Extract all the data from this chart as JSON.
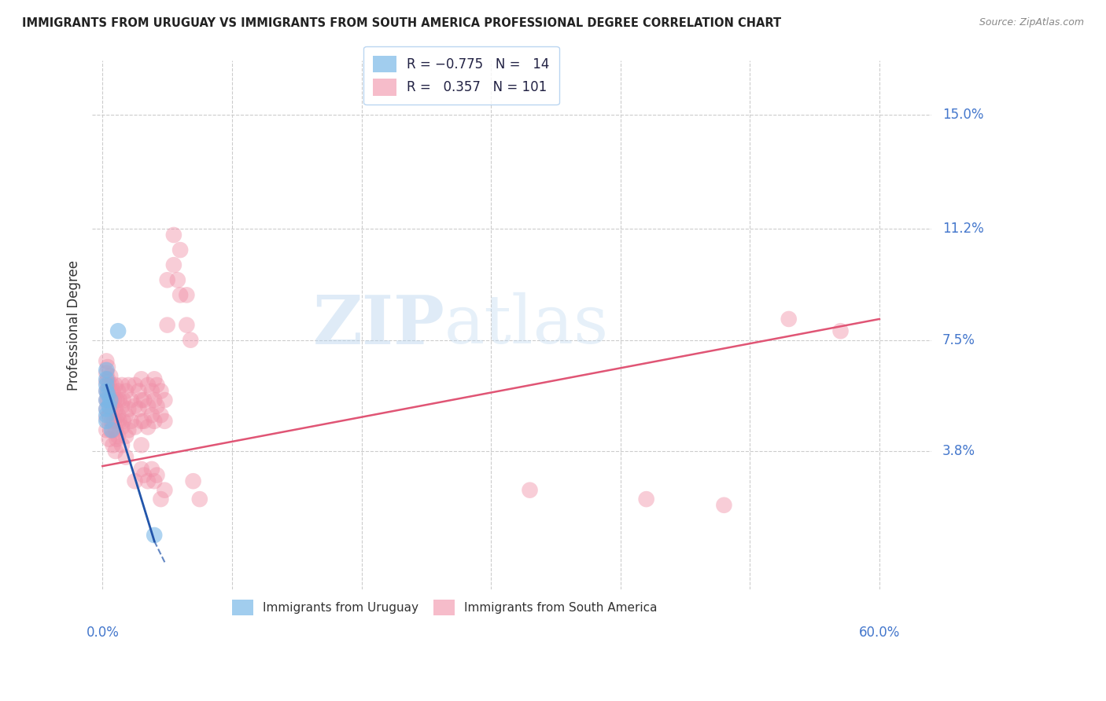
{
  "title": "IMMIGRANTS FROM URUGUAY VS IMMIGRANTS FROM SOUTH AMERICA PROFESSIONAL DEGREE CORRELATION CHART",
  "source": "Source: ZipAtlas.com",
  "ylabel": "Professional Degree",
  "y_ticks": [
    0.038,
    0.075,
    0.112,
    0.15
  ],
  "y_tick_labels": [
    "3.8%",
    "7.5%",
    "11.2%",
    "15.0%"
  ],
  "x_gridlines": [
    0.0,
    0.1,
    0.2,
    0.3,
    0.4,
    0.5,
    0.6
  ],
  "xlim": [
    -0.008,
    0.64
  ],
  "ylim": [
    -0.008,
    0.168
  ],
  "bg_color": "#ffffff",
  "grid_color": "#cccccc",
  "blue_color": "#7ab8e8",
  "pink_color": "#f090a8",
  "blue_line_color": "#2255aa",
  "pink_line_color": "#e05575",
  "blue_scatter": [
    [
      0.003,
      0.062
    ],
    [
      0.003,
      0.058
    ],
    [
      0.003,
      0.055
    ],
    [
      0.003,
      0.052
    ],
    [
      0.003,
      0.05
    ],
    [
      0.003,
      0.048
    ],
    [
      0.003,
      0.06
    ],
    [
      0.003,
      0.065
    ],
    [
      0.004,
      0.057
    ],
    [
      0.005,
      0.053
    ],
    [
      0.006,
      0.055
    ],
    [
      0.007,
      0.045
    ],
    [
      0.012,
      0.078
    ],
    [
      0.04,
      0.01
    ]
  ],
  "pink_scatter": [
    [
      0.003,
      0.068
    ],
    [
      0.003,
      0.064
    ],
    [
      0.003,
      0.061
    ],
    [
      0.003,
      0.058
    ],
    [
      0.003,
      0.055
    ],
    [
      0.003,
      0.052
    ],
    [
      0.003,
      0.049
    ],
    [
      0.003,
      0.045
    ],
    [
      0.004,
      0.066
    ],
    [
      0.004,
      0.062
    ],
    [
      0.004,
      0.058
    ],
    [
      0.004,
      0.055
    ],
    [
      0.005,
      0.06
    ],
    [
      0.005,
      0.05
    ],
    [
      0.005,
      0.042
    ],
    [
      0.006,
      0.063
    ],
    [
      0.006,
      0.058
    ],
    [
      0.006,
      0.052
    ],
    [
      0.006,
      0.045
    ],
    [
      0.007,
      0.06
    ],
    [
      0.007,
      0.055
    ],
    [
      0.007,
      0.048
    ],
    [
      0.008,
      0.058
    ],
    [
      0.008,
      0.052
    ],
    [
      0.008,
      0.045
    ],
    [
      0.008,
      0.04
    ],
    [
      0.009,
      0.055
    ],
    [
      0.009,
      0.048
    ],
    [
      0.01,
      0.06
    ],
    [
      0.01,
      0.052
    ],
    [
      0.01,
      0.045
    ],
    [
      0.01,
      0.038
    ],
    [
      0.011,
      0.055
    ],
    [
      0.011,
      0.048
    ],
    [
      0.011,
      0.042
    ],
    [
      0.012,
      0.058
    ],
    [
      0.012,
      0.05
    ],
    [
      0.012,
      0.043
    ],
    [
      0.013,
      0.055
    ],
    [
      0.013,
      0.048
    ],
    [
      0.015,
      0.06
    ],
    [
      0.015,
      0.053
    ],
    [
      0.015,
      0.046
    ],
    [
      0.015,
      0.04
    ],
    [
      0.016,
      0.055
    ],
    [
      0.016,
      0.048
    ],
    [
      0.018,
      0.058
    ],
    [
      0.018,
      0.05
    ],
    [
      0.018,
      0.043
    ],
    [
      0.018,
      0.036
    ],
    [
      0.02,
      0.06
    ],
    [
      0.02,
      0.052
    ],
    [
      0.02,
      0.045
    ],
    [
      0.022,
      0.055
    ],
    [
      0.022,
      0.048
    ],
    [
      0.025,
      0.06
    ],
    [
      0.025,
      0.053
    ],
    [
      0.025,
      0.046
    ],
    [
      0.028,
      0.058
    ],
    [
      0.028,
      0.052
    ],
    [
      0.03,
      0.062
    ],
    [
      0.03,
      0.055
    ],
    [
      0.03,
      0.048
    ],
    [
      0.03,
      0.04
    ],
    [
      0.032,
      0.055
    ],
    [
      0.032,
      0.048
    ],
    [
      0.035,
      0.06
    ],
    [
      0.035,
      0.053
    ],
    [
      0.035,
      0.046
    ],
    [
      0.038,
      0.058
    ],
    [
      0.038,
      0.05
    ],
    [
      0.04,
      0.062
    ],
    [
      0.04,
      0.055
    ],
    [
      0.04,
      0.048
    ],
    [
      0.042,
      0.06
    ],
    [
      0.042,
      0.053
    ],
    [
      0.045,
      0.058
    ],
    [
      0.045,
      0.05
    ],
    [
      0.048,
      0.055
    ],
    [
      0.048,
      0.048
    ],
    [
      0.05,
      0.08
    ],
    [
      0.05,
      0.095
    ],
    [
      0.055,
      0.1
    ],
    [
      0.055,
      0.11
    ],
    [
      0.058,
      0.095
    ],
    [
      0.06,
      0.105
    ],
    [
      0.06,
      0.09
    ],
    [
      0.065,
      0.09
    ],
    [
      0.065,
      0.08
    ],
    [
      0.068,
      0.075
    ],
    [
      0.025,
      0.028
    ],
    [
      0.03,
      0.032
    ],
    [
      0.032,
      0.03
    ],
    [
      0.035,
      0.028
    ],
    [
      0.038,
      0.032
    ],
    [
      0.04,
      0.028
    ],
    [
      0.042,
      0.03
    ],
    [
      0.045,
      0.022
    ],
    [
      0.048,
      0.025
    ],
    [
      0.07,
      0.028
    ],
    [
      0.075,
      0.022
    ],
    [
      0.33,
      0.025
    ],
    [
      0.42,
      0.022
    ],
    [
      0.48,
      0.02
    ],
    [
      0.53,
      0.082
    ],
    [
      0.57,
      0.078
    ]
  ],
  "pink_line_x": [
    0.0,
    0.6
  ],
  "pink_line_y": [
    0.033,
    0.082
  ],
  "blue_line_x": [
    0.003,
    0.04
  ],
  "blue_line_y": [
    0.06,
    0.008
  ]
}
